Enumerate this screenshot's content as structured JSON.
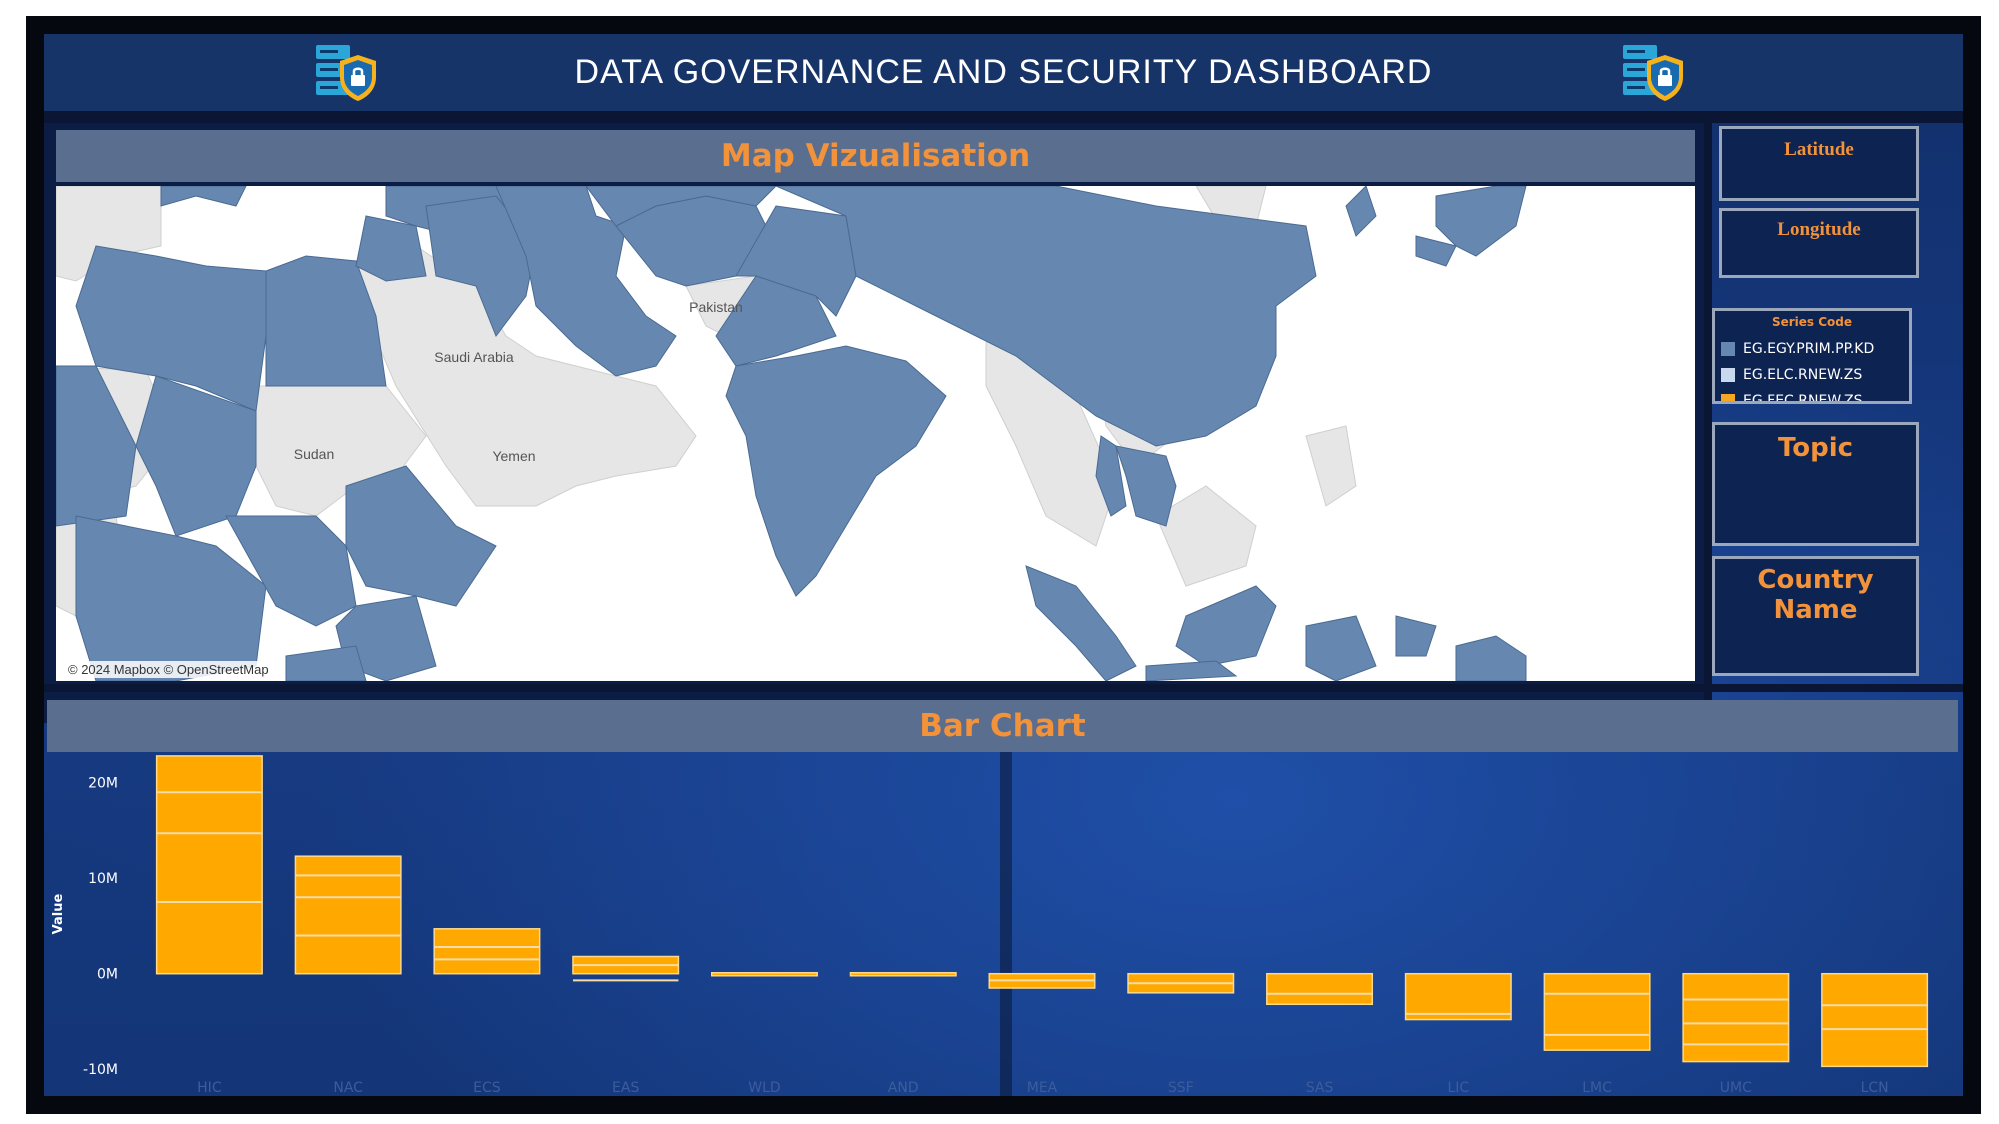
{
  "header": {
    "title": "DATA GOVERNANCE AND SECURITY DASHBOARD",
    "left_icon": "server-lock-icon",
    "right_icon": "server-lock-icon"
  },
  "map_panel": {
    "title": "Map Vizualisation",
    "attribution": "© 2024 Mapbox © OpenStreetMap",
    "place_labels": [
      "Pakistan",
      "Saudi Arabia",
      "Sudan",
      "Yemen"
    ],
    "highlight_color": "#6688b0",
    "land_color": "#e8e8e8"
  },
  "filters": {
    "latitude_label": "Latitude",
    "longitude_label": "Longitude",
    "topic_label": "Topic",
    "country_label": "Country Name"
  },
  "legend": {
    "title": "Series Code",
    "items": [
      {
        "label": "EG.EGY.PRIM.PP.KD",
        "color": "#6688b0"
      },
      {
        "label": "EG.ELC.RNEW.ZS",
        "color": "#c9d8ec"
      },
      {
        "label": "EG.FEC.RNEW.ZS",
        "color": "#f5a623"
      }
    ]
  },
  "bar_panel": {
    "title": "Bar Chart"
  },
  "colors": {
    "accent": "#f2923a",
    "bar": "#ffa800",
    "header_bg": "#173468"
  },
  "chart_data": {
    "type": "bar",
    "stacked": true,
    "title": "Bar Chart",
    "ylabel": "Value",
    "xlabel": "",
    "ylim": [
      -10500000,
      23000000
    ],
    "yticks": [
      {
        "value": 20000000,
        "label": "20M"
      },
      {
        "value": 10000000,
        "label": "10M"
      },
      {
        "value": 0,
        "label": "0M"
      },
      {
        "value": -10000000,
        "label": "-10M"
      }
    ],
    "categories": [
      "HIC",
      "NAC",
      "ECS",
      "EAS",
      "WLD",
      "AND",
      "MEA",
      "SSF",
      "SAS",
      "LIC",
      "LMC",
      "UMC",
      "LCN"
    ],
    "values": [
      22800000,
      12300000,
      4700000,
      1800000,
      100000,
      100000,
      -1500000,
      -2000000,
      -3200000,
      -4800000,
      -8000000,
      -9200000,
      -9700000
    ],
    "segments": [
      [
        7500000,
        14700000,
        19000000
      ],
      [
        4000000,
        8000000,
        10300000
      ],
      [
        1500000,
        2800000
      ],
      [
        -700000,
        900000
      ],
      [],
      [],
      [
        -700000
      ],
      [
        -1000000
      ],
      [
        -2100000
      ],
      [
        -4200000
      ],
      [
        -2100000,
        -6400000
      ],
      [
        -2700000,
        -5200000,
        -7400000
      ],
      [
        -3300000,
        -5800000
      ]
    ]
  }
}
